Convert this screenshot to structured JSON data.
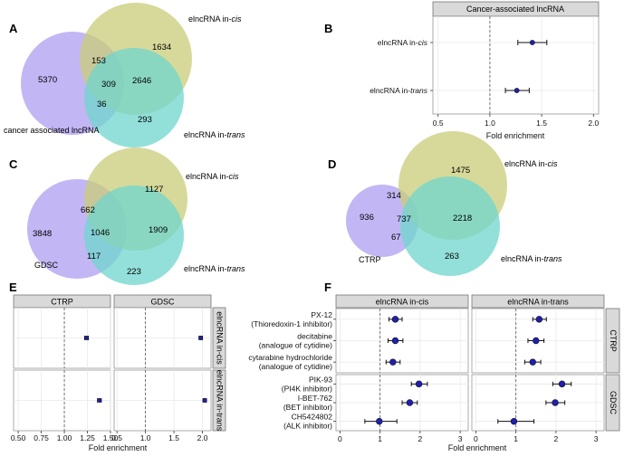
{
  "colors": {
    "purple": "#b8a9f2",
    "olive": "#c9cc78",
    "teal": "#6fd6cd",
    "green_overlap": "#6bbf8a",
    "point": "#1f1fb4",
    "strip": "#d9d9d9"
  },
  "panels": {
    "A": "A",
    "B": "B",
    "C": "C",
    "D": "D",
    "E": "E",
    "F": "F"
  },
  "venn_a": {
    "left_label": "cancer associated lncRNA",
    "top_label_main": "elncRNA in-",
    "top_label_ital": "cis",
    "bottom_label_main": "elncRNA in-",
    "bottom_label_ital": "trans",
    "left_only": "5370",
    "top_only": "1634",
    "left_top": "153",
    "triple": "309",
    "top_bottom": "2646",
    "left_bottom": "36",
    "bottom_only": "293"
  },
  "venn_c": {
    "left_label": "GDSC",
    "top_label_main": "elncRNA in-",
    "top_label_ital": "cis",
    "bottom_label_main": "elncRNA in-",
    "bottom_label_ital": "trans",
    "left_only": "3848",
    "top_only": "1127",
    "left_top": "662",
    "triple": "1046",
    "top_bottom": "1909",
    "left_bottom": "117",
    "bottom_only": "223"
  },
  "venn_d": {
    "left_label": "CTRP",
    "top_label_main": "elncRNA in-",
    "top_label_ital": "cis",
    "bottom_label_main": "elncRNA in-",
    "bottom_label_ital": "trans",
    "left_only": "936",
    "top_only": "1475",
    "left_top": "314",
    "triple": "737",
    "top_bottom": "2218",
    "left_bottom": "67",
    "bottom_only": "263"
  },
  "chart_data": [
    {
      "id": "B",
      "type": "scatter",
      "title": "Cancer-associated lncRNA",
      "xlabel": "Fold enrichment",
      "xlim": [
        0.45,
        2.05
      ],
      "xticks": [
        "0.5",
        "1.0",
        "1.5",
        "2.0"
      ],
      "xtick_values": [
        0.5,
        1.0,
        1.5,
        2.0
      ],
      "ref": 1.0,
      "rows": [
        {
          "label": "elncRNA in-cis",
          "label_main": "elncRNA in-",
          "label_ital": "cis",
          "value": 1.41,
          "lo": 1.27,
          "hi": 1.55
        },
        {
          "label": "elncRNA in-trans",
          "label_main": "elncRNA in-",
          "label_ital": "trans",
          "value": 1.26,
          "lo": 1.15,
          "hi": 1.38
        }
      ]
    },
    {
      "id": "E",
      "type": "scatter",
      "xlabel": "Fold enrichment",
      "columns": [
        "CTRP",
        "GDSC"
      ],
      "rows_facets": [
        "elncRNA in-cis",
        "elncRNA in-trans"
      ],
      "CTRP": {
        "xlim": [
          0.45,
          1.5
        ],
        "xticks": [
          "0.50",
          "0.75",
          "1.00",
          "1.25",
          "1.50"
        ],
        "xtick_values": [
          0.5,
          0.75,
          1.0,
          1.25,
          1.5
        ],
        "points": [
          {
            "facet": "elncRNA in-cis",
            "value": 1.24,
            "lo": 1.22,
            "hi": 1.26
          },
          {
            "facet": "elncRNA in-trans",
            "value": 1.38,
            "lo": 1.36,
            "hi": 1.4
          }
        ]
      },
      "GDSC": {
        "xlim": [
          0.45,
          2.15
        ],
        "xticks": [
          "0.5",
          "1.0",
          "1.5",
          "2.0"
        ],
        "xtick_values": [
          0.5,
          1.0,
          1.5,
          2.0
        ],
        "points": [
          {
            "facet": "elncRNA in-cis",
            "value": 1.97,
            "lo": 1.94,
            "hi": 2.0
          },
          {
            "facet": "elncRNA in-trans",
            "value": 2.04,
            "lo": 2.01,
            "hi": 2.07
          }
        ]
      },
      "ref": 1.0
    },
    {
      "id": "F",
      "type": "scatter",
      "xlabel": "Fold enrichment",
      "xlim": [
        -0.1,
        3.2
      ],
      "xticks": [
        "0",
        "1",
        "2",
        "3"
      ],
      "xtick_values": [
        0,
        1,
        2,
        3
      ],
      "ref": 1.0,
      "columns": [
        "elncRNA in-cis",
        "elncRNA in-trans"
      ],
      "groups": [
        {
          "name": "CTRP",
          "drugs": [
            {
              "line1": "PX-12",
              "line2": "(Thioredoxin-1 inhibitor)",
              "cis": [
                1.38,
                1.22,
                1.55
              ],
              "trans": [
                1.58,
                1.42,
                1.76
              ]
            },
            {
              "line1": "decitabine",
              "line2": "(analogue of cytidine)",
              "cis": [
                1.38,
                1.2,
                1.57
              ],
              "trans": [
                1.5,
                1.3,
                1.7
              ]
            },
            {
              "line1": "cytarabine hydrochloride",
              "line2": "(analogue of cytidine)",
              "cis": [
                1.32,
                1.15,
                1.5
              ],
              "trans": [
                1.42,
                1.22,
                1.62
              ]
            }
          ]
        },
        {
          "name": "GDSC",
          "drugs": [
            {
              "line1": "PIK-93",
              "line2": "(PI4K inhibitor)",
              "cis": [
                1.97,
                1.78,
                2.18
              ],
              "trans": [
                2.15,
                1.92,
                2.38
              ]
            },
            {
              "line1": "I-BET-762",
              "line2": "(BET inhibitor)",
              "cis": [
                1.74,
                1.55,
                1.93
              ],
              "trans": [
                1.98,
                1.75,
                2.22
              ]
            },
            {
              "line1": "CH5424802",
              "line2": "(ALK inhibitor)",
              "cis": [
                0.98,
                0.62,
                1.42
              ],
              "trans": [
                0.95,
                0.55,
                1.45
              ]
            }
          ]
        }
      ]
    }
  ]
}
